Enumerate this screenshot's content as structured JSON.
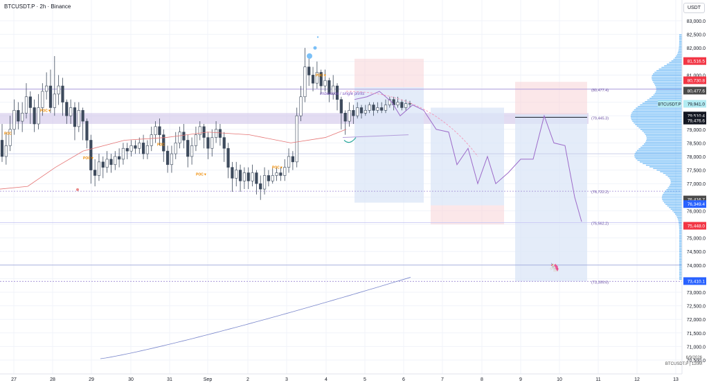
{
  "header": {
    "symbol_line": "BTCUSDT.P · 2h · Binance",
    "currency": "USDT"
  },
  "footer": {
    "date": "6/9/2026",
    "caption": "BTCUSDT.P | 120M"
  },
  "chart_data": {
    "type": "candlestick",
    "symbol": "BTCUSDT.P",
    "interval": "2h",
    "exchange": "Binance",
    "ylim": [
      70000,
      83300
    ],
    "y_ticks": [
      70500,
      71000,
      71500,
      72000,
      72500,
      73000,
      73500,
      74000,
      74500,
      75000,
      75500,
      76000,
      76500,
      77000,
      77500,
      78000,
      78500,
      79000,
      79500,
      80000,
      80500,
      81000,
      81500,
      82000,
      82500,
      83000
    ],
    "y_tick_labels": [
      "70,500.0",
      "71,000.0",
      "71,500.0",
      "72,000.0",
      "72,500.0",
      "73,000.0",
      "73,500.0",
      "74,000.0",
      "74,500.0",
      "75,000.0",
      "75,500.0",
      "76,000.0",
      "76,500.0",
      "77,000.0",
      "77,500.0",
      "78,000.0",
      "78,500.0",
      "79,000.0",
      "79,500.0",
      "80,000.0",
      "80,500.0",
      "81,000.0",
      "81,500.0",
      "82,000.0",
      "82,500.0",
      "83,000.0"
    ],
    "x_ticks": [
      "27",
      "28",
      "29",
      "30",
      "31",
      "Sep",
      "2",
      "3",
      "4",
      "5",
      "6",
      "7",
      "8",
      "9",
      "10",
      "11",
      "12",
      "13"
    ],
    "grid": true,
    "price_badges": [
      {
        "label": "81,516.5",
        "value": 81516.5,
        "color": "#f23645"
      },
      {
        "label": "80,730.8",
        "value": 80730.8,
        "color": "#f23645"
      },
      {
        "label": "80,477.6",
        "value": 80477.6,
        "color": "#4a4a4a"
      },
      {
        "label": "BTCUSDT.P",
        "value": 79941.0,
        "color": "#b2ebf2"
      },
      {
        "label": "79,941.0",
        "value": 79941.0,
        "color": "#b2ebf2"
      },
      {
        "label": "79,510.4",
        "value": 79510.4,
        "color": "#131722"
      },
      {
        "label": "79,476.6",
        "value": 79476.6,
        "color": "#131722"
      },
      {
        "label": "76,416.7",
        "value": 76416.7,
        "color": "#4a4a4a"
      },
      {
        "label": "76,349.4",
        "value": 76349.4,
        "color": "#2962ff"
      },
      {
        "label": "75,448.0",
        "value": 75448.0,
        "color": "#f23645"
      },
      {
        "label": "73,410.1",
        "value": 73410.1,
        "color": "#2962ff"
      }
    ],
    "annotations": [
      {
        "text": "(80,477.4)",
        "value": 80477.4
      },
      {
        "text": "(79,445.3)",
        "value": 79445.3
      },
      {
        "text": "(76,722.2)",
        "value": 76722.2
      },
      {
        "text": "(75,562.2)",
        "value": 75562.2
      },
      {
        "text": "(73,399.6)",
        "value": 73399.6
      },
      {
        "text": "imbalance / single prints",
        "value": 80350
      }
    ],
    "poc_labels": [
      {
        "text": "POC",
        "value": 78800
      },
      {
        "text": "POC▼",
        "value": 79650
      },
      {
        "text": "POC",
        "value": 78400
      },
      {
        "text": "POC▼",
        "value": 77900
      },
      {
        "text": "POC▼",
        "value": 77300
      },
      {
        "text": "POC▼",
        "value": 77550
      },
      {
        "text": "POC▼",
        "value": 80950
      }
    ],
    "candles": [
      [
        78600,
        78000,
        79200,
        77800
      ],
      [
        78000,
        78400,
        78900,
        77700
      ],
      [
        78400,
        79000,
        79500,
        78200
      ],
      [
        79000,
        79700,
        80100,
        78800
      ],
      [
        79700,
        79300,
        80000,
        79000
      ],
      [
        79300,
        79600,
        80000,
        78900
      ],
      [
        79600,
        80200,
        80700,
        79400
      ],
      [
        80200,
        79800,
        80400,
        79200
      ],
      [
        79800,
        79200,
        80100,
        78900
      ],
      [
        79200,
        79800,
        80300,
        79000
      ],
      [
        79800,
        80400,
        80700,
        79500
      ],
      [
        80400,
        80600,
        81100,
        80100
      ],
      [
        80600,
        79800,
        81200,
        79600
      ],
      [
        79800,
        80300,
        81700,
        79500
      ],
      [
        80300,
        80600,
        81000,
        79900
      ],
      [
        80600,
        80000,
        80900,
        79500
      ],
      [
        80000,
        79500,
        80100,
        79200
      ],
      [
        79500,
        79800,
        80100,
        79200
      ],
      [
        79800,
        79100,
        80000,
        78600
      ],
      [
        79100,
        79700,
        80000,
        78900
      ],
      [
        79700,
        79300,
        79800,
        78600
      ],
      [
        79300,
        78600,
        79400,
        78300
      ],
      [
        78600,
        77500,
        78800,
        77000
      ],
      [
        77500,
        77300,
        77900,
        76900
      ],
      [
        77300,
        77800,
        78100,
        77100
      ],
      [
        77800,
        77600,
        78000,
        77200
      ],
      [
        77600,
        77900,
        78200,
        77400
      ],
      [
        77900,
        77700,
        78100,
        77400
      ],
      [
        77700,
        78000,
        78200,
        77500
      ],
      [
        78000,
        77900,
        78300,
        77600
      ],
      [
        77900,
        78300,
        78500,
        77700
      ],
      [
        78300,
        78200,
        78500,
        77900
      ],
      [
        78200,
        78400,
        78600,
        78000
      ],
      [
        78400,
        78300,
        78600,
        78100
      ],
      [
        78300,
        78500,
        78700,
        78100
      ],
      [
        78500,
        78100,
        78800,
        77900
      ],
      [
        78100,
        78400,
        78600,
        77900
      ],
      [
        78400,
        78800,
        79100,
        78200
      ],
      [
        78800,
        79100,
        79300,
        78500
      ],
      [
        79100,
        78800,
        79400,
        78400
      ],
      [
        78800,
        78200,
        79000,
        77800
      ],
      [
        78200,
        77700,
        78400,
        77400
      ],
      [
        77700,
        78100,
        78400,
        77400
      ],
      [
        78100,
        78500,
        78900,
        77900
      ],
      [
        78500,
        78900,
        79100,
        78300
      ],
      [
        78900,
        78600,
        79200,
        78300
      ],
      [
        78600,
        78000,
        78800,
        77600
      ],
      [
        78000,
        78400,
        78700,
        77700
      ],
      [
        78400,
        78800,
        79100,
        78200
      ],
      [
        78800,
        79100,
        79300,
        78600
      ],
      [
        79100,
        78700,
        79200,
        78300
      ],
      [
        78700,
        78300,
        78900,
        77900
      ],
      [
        78300,
        78700,
        79000,
        78000
      ],
      [
        78700,
        79000,
        79300,
        78500
      ],
      [
        79000,
        78700,
        79200,
        78400
      ],
      [
        78700,
        78300,
        78900,
        77800
      ],
      [
        78300,
        77600,
        78500,
        77200
      ],
      [
        77600,
        77200,
        77800,
        76700
      ],
      [
        77200,
        77500,
        77800,
        76900
      ],
      [
        77500,
        77100,
        77700,
        76700
      ],
      [
        77100,
        77400,
        77600,
        76800
      ],
      [
        77400,
        77100,
        77600,
        76800
      ],
      [
        77100,
        77400,
        77700,
        76900
      ],
      [
        77400,
        77000,
        77500,
        76600
      ],
      [
        77000,
        76800,
        77300,
        76400
      ],
      [
        76800,
        77300,
        77600,
        76600
      ],
      [
        77300,
        77100,
        77500,
        76900
      ],
      [
        77100,
        77300,
        77600,
        77000
      ],
      [
        77300,
        77400,
        77600,
        77100
      ],
      [
        77400,
        77300,
        77600,
        77100
      ],
      [
        77300,
        77600,
        77900,
        77100
      ],
      [
        77600,
        78000,
        78300,
        77400
      ],
      [
        78000,
        77800,
        78200,
        77500
      ],
      [
        77800,
        79500,
        79800,
        77600
      ],
      [
        79500,
        80200,
        80600,
        79300
      ],
      [
        80200,
        81300,
        82000,
        80000
      ],
      [
        81300,
        81000,
        81600,
        80600
      ],
      [
        81000,
        80700,
        81300,
        80400
      ],
      [
        80700,
        81100,
        81500,
        80500
      ],
      [
        81100,
        80600,
        81200,
        80300
      ],
      [
        80600,
        80800,
        81200,
        80400
      ],
      [
        80800,
        80300,
        80900,
        80000
      ],
      [
        80300,
        80600,
        81000,
        80100
      ],
      [
        80600,
        80100,
        80700,
        79700
      ],
      [
        80100,
        79600,
        80200,
        79000
      ],
      [
        79600,
        79300,
        79700,
        78800
      ],
      [
        79300,
        79700,
        80000,
        79100
      ],
      [
        79700,
        79500,
        79900,
        79200
      ],
      [
        79500,
        79800,
        80000,
        79400
      ],
      [
        79800,
        79600,
        79900,
        79400
      ],
      [
        79600,
        79700,
        79900,
        79500
      ],
      [
        79700,
        79900,
        80000,
        79600
      ],
      [
        79900,
        79700,
        80000,
        79500
      ],
      [
        79700,
        79800,
        80000,
        79600
      ],
      [
        79800,
        79700,
        80000,
        79600
      ],
      [
        79700,
        79900,
        80100,
        79600
      ],
      [
        79900,
        80100,
        80200,
        79800
      ],
      [
        80100,
        79900,
        80200,
        79700
      ],
      [
        79900,
        80000,
        80200,
        79800
      ],
      [
        80000,
        79800,
        80100,
        79700
      ],
      [
        79800,
        79950,
        80100,
        79700
      ],
      [
        79950,
        79941,
        80050,
        79800
      ]
    ]
  }
}
